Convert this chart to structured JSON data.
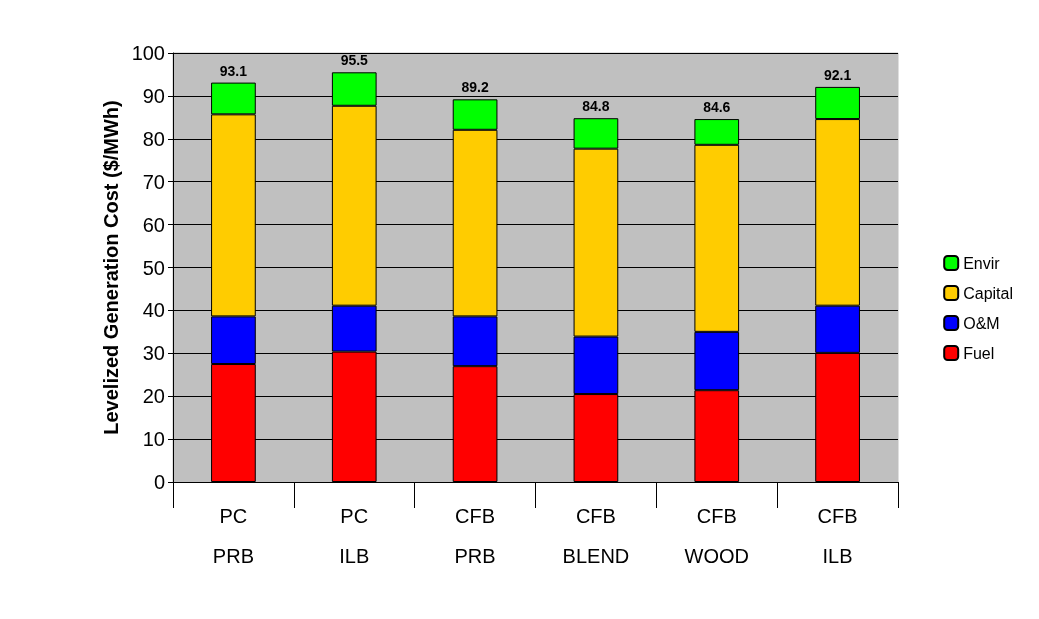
{
  "chart_data": {
    "type": "bar",
    "ylabel": "Levelized Generation Cost ($/MWh)",
    "categories": [
      "PC\nPRB",
      "PC\nILB",
      "CFB\nPRB",
      "CFB\nBLEND",
      "CFB\nWOOD",
      "CFB\nILB"
    ],
    "stacked": true,
    "series": [
      {
        "name": "Fuel",
        "color": "#ff0000",
        "values": [
          27.5,
          30.4,
          27.0,
          20.5,
          21.4,
          30.1
        ]
      },
      {
        "name": "O&M",
        "color": "#0000ff",
        "values": [
          11.1,
          10.7,
          11.6,
          13.4,
          13.6,
          11.0
        ]
      },
      {
        "name": "Capital",
        "color": "#ffcc00",
        "values": [
          47.1,
          46.6,
          43.5,
          43.8,
          43.6,
          43.5
        ]
      },
      {
        "name": "Envir",
        "color": "#00ff00",
        "values": [
          7.4,
          7.8,
          7.1,
          7.1,
          6.0,
          7.5
        ]
      }
    ],
    "totals": [
      "93.1",
      "95.5",
      "89.2",
      "84.8",
      "84.6",
      "92.1"
    ],
    "ylim": [
      0,
      100
    ],
    "yticks": [
      0,
      10,
      20,
      30,
      40,
      50,
      60,
      70,
      80,
      90,
      100
    ],
    "grid": "y",
    "legend": "right"
  }
}
